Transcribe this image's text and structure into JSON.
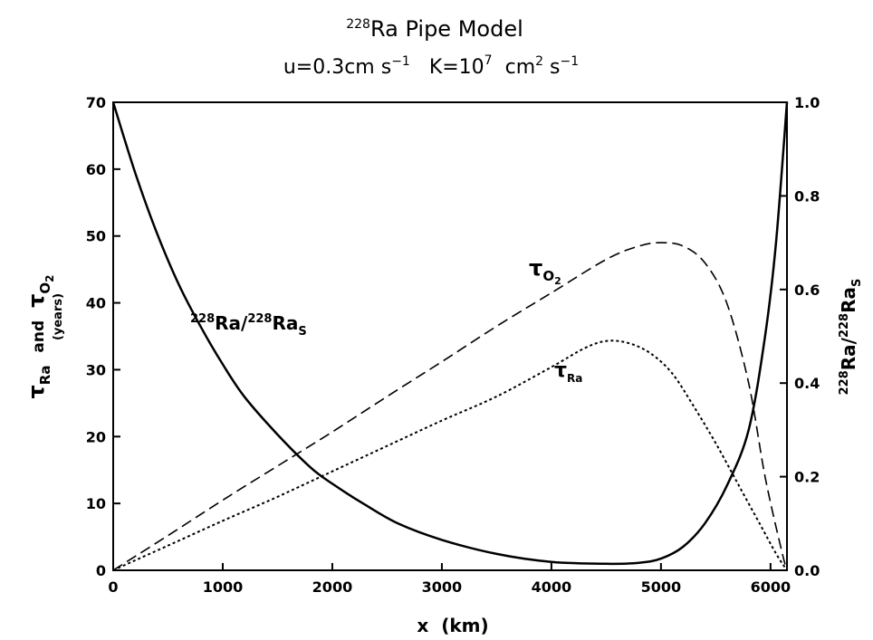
{
  "chart_data": {
    "type": "line",
    "title_prefix": "228",
    "title_main": "Ra Pipe Model",
    "subtitle": {
      "velocity": "u=0.3cm s",
      "velocity_exp": "−1",
      "diffusivity": "K=10",
      "diffusivity_exp": "7",
      "diffusivity_units": "cm",
      "units_exp_2": "2",
      "units_s": "s",
      "units_exp_neg1": "−1"
    },
    "xlabel": "x  (km)",
    "xlim": [
      0,
      6150
    ],
    "x_ticks": [
      0,
      1000,
      2000,
      3000,
      4000,
      5000,
      6000
    ],
    "ylim_left": [
      0,
      70
    ],
    "y_ticks_left": [
      0,
      10,
      20,
      30,
      40,
      50,
      60,
      70
    ],
    "ylim_right": [
      0.0,
      1.0
    ],
    "y_ticks_right": [
      "0.0",
      "0.2",
      "0.4",
      "0.6",
      "0.8",
      "1.0"
    ],
    "ylabel_left": {
      "tau": "τ",
      "ra_sub": "Ra",
      "and": "and",
      "o_sub": "O",
      "two_sub": "2",
      "units": "(years)"
    },
    "ylabel_right": {
      "sup1": "228",
      "ra1": "Ra/",
      "sup2": "228",
      "ra2": "Ra",
      "sub": "S"
    },
    "series": [
      {
        "name": "228Ra/228RaS",
        "axis": "right",
        "style": "solid",
        "x": [
          0,
          200,
          400,
          600,
          800,
          1000,
          1200,
          1500,
          1800,
          2000,
          2300,
          2600,
          3000,
          3500,
          4000,
          4500,
          4800,
          5000,
          5200,
          5400,
          5600,
          5800,
          5950,
          6050,
          6150
        ],
        "values": [
          1.0,
          0.85,
          0.72,
          0.61,
          0.52,
          0.44,
          0.37,
          0.29,
          0.22,
          0.185,
          0.14,
          0.1,
          0.065,
          0.035,
          0.018,
          0.014,
          0.016,
          0.025,
          0.05,
          0.1,
          0.18,
          0.3,
          0.5,
          0.7,
          1.0
        ]
      },
      {
        "name": "τO2",
        "axis": "left",
        "style": "dashed",
        "x": [
          0,
          500,
          1000,
          1500,
          2000,
          2500,
          3000,
          3500,
          4000,
          4500,
          4800,
          5000,
          5200,
          5400,
          5600,
          5800,
          5950,
          6100,
          6150
        ],
        "values": [
          0,
          5.2,
          10.5,
          15.6,
          20.7,
          26,
          31.2,
          36.5,
          41.5,
          46.5,
          48.5,
          49,
          48.5,
          46,
          40,
          28,
          14,
          3,
          0
        ]
      },
      {
        "name": "τRa",
        "axis": "left",
        "style": "dotted",
        "x": [
          0,
          500,
          1000,
          1500,
          2000,
          2500,
          3000,
          3500,
          4000,
          4300,
          4500,
          4700,
          4900,
          5100,
          5300,
          5500,
          5700,
          5900,
          6050,
          6150
        ],
        "values": [
          0,
          3.7,
          7.4,
          11,
          14.8,
          18.6,
          22.4,
          26,
          30.4,
          33.2,
          34.3,
          34,
          32.5,
          29.5,
          24.5,
          19,
          13,
          7,
          2.5,
          0
        ]
      }
    ],
    "curve_labels": {
      "ra_ratio": {
        "sup1": "228",
        "text1": "Ra/",
        "sup2": "228",
        "text2": "Ra",
        "sub": "S"
      },
      "tau_o2": {
        "tau": "τ",
        "sub": "O",
        "subsub": "2"
      },
      "tau_ra": {
        "tau": "τ",
        "sub": "Ra"
      }
    }
  }
}
